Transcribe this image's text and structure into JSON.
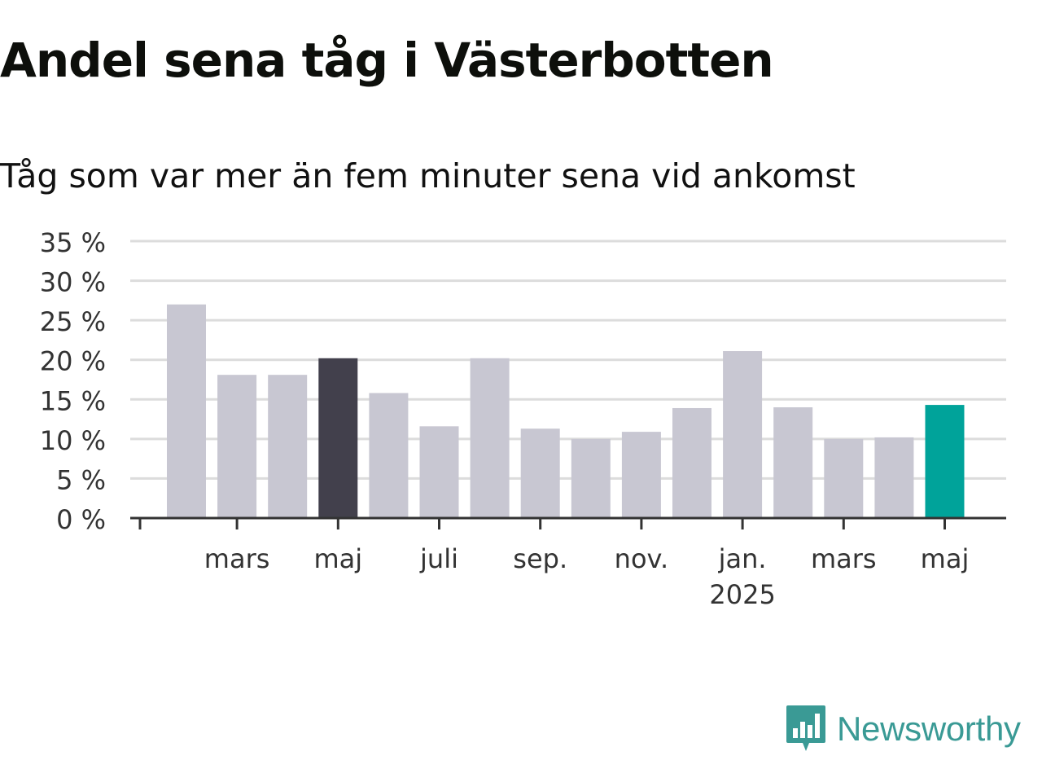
{
  "header": {
    "title": "Andel sena tåg i Västerbotten",
    "subtitle": "Tåg som var mer än fem minuter sena vid ankomst"
  },
  "brand": {
    "name": "Newsworthy",
    "color": "#3a9a95"
  },
  "colors": {
    "bar_default": "#c8c7d2",
    "bar_highlight_dark": "#42404c",
    "bar_highlight_latest": "#00a39a",
    "gridline": "#dcdcdc",
    "axis": "#333333",
    "text": "#333333"
  },
  "chart_data": {
    "type": "bar",
    "title": "Andel sena tåg i Västerbotten",
    "subtitle": "Tåg som var mer än fem minuter sena vid ankomst",
    "xlabel": "",
    "ylabel": "",
    "ylim": [
      0,
      35
    ],
    "y_ticks": [
      0,
      5,
      10,
      15,
      20,
      25,
      30,
      35
    ],
    "y_tick_labels": [
      "0 %",
      "5 %",
      "10 %",
      "15 %",
      "20 %",
      "25 %",
      "30 %",
      "35 %"
    ],
    "grid": true,
    "categories": [
      "2024-02",
      "2024-03",
      "2024-04",
      "2024-05",
      "2024-06",
      "2024-07",
      "2024-08",
      "2024-09",
      "2024-10",
      "2024-11",
      "2024-12",
      "2025-01",
      "2025-02",
      "2025-03",
      "2025-04",
      "2025-05"
    ],
    "values": [
      27.0,
      18.1,
      18.1,
      20.2,
      15.8,
      11.6,
      20.2,
      11.3,
      10.0,
      10.9,
      13.9,
      21.1,
      14.0,
      10.0,
      10.2,
      14.3
    ],
    "highlight": {
      "2024-05": "dark",
      "2025-05": "latest"
    },
    "x_tick_labels": [
      {
        "at": "2024-03",
        "label": "mars"
      },
      {
        "at": "2024-05",
        "label": "maj"
      },
      {
        "at": "2024-07",
        "label": "juli"
      },
      {
        "at": "2024-09",
        "label": "sep."
      },
      {
        "at": "2024-11",
        "label": "nov."
      },
      {
        "at": "2025-01",
        "label": "jan.",
        "sublabel": "2025"
      },
      {
        "at": "2025-03",
        "label": "mars"
      },
      {
        "at": "2025-05",
        "label": "maj"
      }
    ]
  }
}
